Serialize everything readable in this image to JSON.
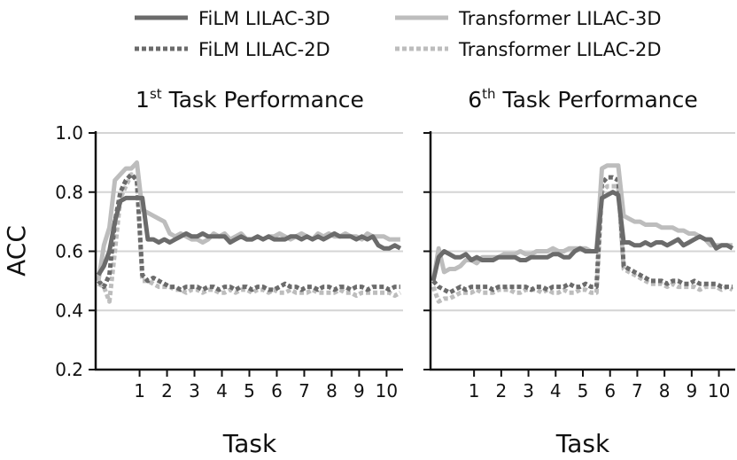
{
  "legend": {
    "items": [
      {
        "label": "FiLM LILAC-3D",
        "color": "#6b6b6b",
        "style": "solid"
      },
      {
        "label": "Transformer LILAC-3D",
        "color": "#bdbdbd",
        "style": "solid"
      },
      {
        "label": "FiLM LILAC-2D",
        "color": "#6b6b6b",
        "style": "dotted"
      },
      {
        "label": "Transformer LILAC-2D",
        "color": "#bdbdbd",
        "style": "dotted"
      }
    ],
    "placement": "top-center"
  },
  "chart_data": [
    {
      "type": "line",
      "title_main": "1",
      "title_sup": "st",
      "title_rest": " Task Performance",
      "xlabel": "Task",
      "ylabel": "ACC",
      "xlim": [
        -0.6,
        10.6
      ],
      "ylim": [
        0.2,
        1.0
      ],
      "yticks": [
        "0.2",
        "0.4",
        "0.6",
        "0.8",
        "1.0"
      ],
      "xticks": [
        "1",
        "2",
        "3",
        "4",
        "5",
        "6",
        "7",
        "8",
        "9",
        "10"
      ],
      "grid": "horizontal",
      "series": [
        {
          "name": "FiLM LILAC-3D",
          "x": [
            -0.5,
            -0.3,
            -0.1,
            0.1,
            0.3,
            0.5,
            0.7,
            0.9,
            1.1,
            1.3,
            1.5,
            1.7,
            1.9,
            2.1,
            2.3,
            2.5,
            2.7,
            2.9,
            3.1,
            3.3,
            3.5,
            3.7,
            3.9,
            4.1,
            4.3,
            4.5,
            4.7,
            4.9,
            5.1,
            5.3,
            5.5,
            5.7,
            5.9,
            6.1,
            6.3,
            6.5,
            6.7,
            6.9,
            7.1,
            7.3,
            7.5,
            7.7,
            7.9,
            8.1,
            8.3,
            8.5,
            8.7,
            8.9,
            9.1,
            9.3,
            9.5,
            9.7,
            9.9,
            10.1,
            10.3,
            10.5
          ],
          "y": [
            0.52,
            0.55,
            0.6,
            0.7,
            0.77,
            0.78,
            0.78,
            0.78,
            0.78,
            0.64,
            0.64,
            0.63,
            0.64,
            0.63,
            0.64,
            0.65,
            0.66,
            0.65,
            0.65,
            0.66,
            0.65,
            0.65,
            0.65,
            0.65,
            0.63,
            0.64,
            0.65,
            0.64,
            0.64,
            0.65,
            0.64,
            0.65,
            0.64,
            0.64,
            0.64,
            0.65,
            0.65,
            0.64,
            0.65,
            0.64,
            0.65,
            0.64,
            0.65,
            0.66,
            0.65,
            0.65,
            0.65,
            0.64,
            0.65,
            0.64,
            0.65,
            0.62,
            0.61,
            0.61,
            0.62,
            0.61
          ]
        },
        {
          "name": "Transformer LILAC-3D",
          "x": [
            -0.5,
            -0.3,
            -0.1,
            0.1,
            0.3,
            0.5,
            0.7,
            0.9,
            1.1,
            1.3,
            1.5,
            1.7,
            1.9,
            2.1,
            2.3,
            2.5,
            2.7,
            2.9,
            3.1,
            3.3,
            3.5,
            3.7,
            3.9,
            4.1,
            4.3,
            4.5,
            4.7,
            4.9,
            5.1,
            5.3,
            5.5,
            5.7,
            5.9,
            6.1,
            6.3,
            6.5,
            6.7,
            6.9,
            7.1,
            7.3,
            7.5,
            7.7,
            7.9,
            8.1,
            8.3,
            8.5,
            8.7,
            8.9,
            9.1,
            9.3,
            9.5,
            9.7,
            9.9,
            10.1,
            10.3,
            10.5
          ],
          "y": [
            0.5,
            0.62,
            0.68,
            0.84,
            0.86,
            0.88,
            0.88,
            0.9,
            0.74,
            0.73,
            0.72,
            0.71,
            0.7,
            0.66,
            0.65,
            0.66,
            0.65,
            0.64,
            0.64,
            0.63,
            0.64,
            0.66,
            0.65,
            0.66,
            0.64,
            0.65,
            0.66,
            0.64,
            0.64,
            0.65,
            0.64,
            0.65,
            0.65,
            0.66,
            0.65,
            0.64,
            0.65,
            0.66,
            0.65,
            0.64,
            0.66,
            0.65,
            0.66,
            0.65,
            0.65,
            0.66,
            0.65,
            0.65,
            0.64,
            0.66,
            0.65,
            0.65,
            0.65,
            0.64,
            0.64,
            0.64
          ]
        },
        {
          "name": "FiLM LILAC-2D",
          "x": [
            -0.5,
            -0.3,
            -0.1,
            0.1,
            0.3,
            0.5,
            0.7,
            0.9,
            1.1,
            1.3,
            1.5,
            1.7,
            1.9,
            2.1,
            2.3,
            2.5,
            2.7,
            2.9,
            3.1,
            3.3,
            3.5,
            3.7,
            3.9,
            4.1,
            4.3,
            4.5,
            4.7,
            4.9,
            5.1,
            5.3,
            5.5,
            5.7,
            5.9,
            6.1,
            6.3,
            6.5,
            6.7,
            6.9,
            7.1,
            7.3,
            7.5,
            7.7,
            7.9,
            8.1,
            8.3,
            8.5,
            8.7,
            8.9,
            9.1,
            9.3,
            9.5,
            9.7,
            9.9,
            10.1,
            10.3,
            10.5
          ],
          "y": [
            0.5,
            0.48,
            0.52,
            0.7,
            0.8,
            0.84,
            0.86,
            0.84,
            0.52,
            0.5,
            0.51,
            0.5,
            0.49,
            0.48,
            0.48,
            0.47,
            0.48,
            0.48,
            0.48,
            0.47,
            0.48,
            0.48,
            0.47,
            0.48,
            0.48,
            0.47,
            0.48,
            0.48,
            0.47,
            0.48,
            0.48,
            0.47,
            0.47,
            0.48,
            0.49,
            0.48,
            0.48,
            0.47,
            0.48,
            0.48,
            0.47,
            0.48,
            0.48,
            0.47,
            0.48,
            0.48,
            0.47,
            0.48,
            0.48,
            0.47,
            0.48,
            0.48,
            0.48,
            0.47,
            0.48,
            0.48
          ]
        },
        {
          "name": "Transformer LILAC-2D",
          "x": [
            -0.5,
            -0.3,
            -0.1,
            0.1,
            0.3,
            0.5,
            0.7,
            0.9,
            1.1,
            1.3,
            1.5,
            1.7,
            1.9,
            2.1,
            2.3,
            2.5,
            2.7,
            2.9,
            3.1,
            3.3,
            3.5,
            3.7,
            3.9,
            4.1,
            4.3,
            4.5,
            4.7,
            4.9,
            5.1,
            5.3,
            5.5,
            5.7,
            5.9,
            6.1,
            6.3,
            6.5,
            6.7,
            6.9,
            7.1,
            7.3,
            7.5,
            7.7,
            7.9,
            8.1,
            8.3,
            8.5,
            8.7,
            8.9,
            9.1,
            9.3,
            9.5,
            9.7,
            9.9,
            10.1,
            10.3,
            10.5
          ],
          "y": [
            0.49,
            0.48,
            0.43,
            0.6,
            0.78,
            0.82,
            0.86,
            0.85,
            0.5,
            0.5,
            0.49,
            0.48,
            0.48,
            0.48,
            0.47,
            0.47,
            0.46,
            0.47,
            0.47,
            0.46,
            0.47,
            0.47,
            0.46,
            0.46,
            0.47,
            0.46,
            0.47,
            0.47,
            0.46,
            0.47,
            0.47,
            0.46,
            0.47,
            0.46,
            0.46,
            0.47,
            0.46,
            0.46,
            0.46,
            0.47,
            0.46,
            0.46,
            0.46,
            0.46,
            0.47,
            0.46,
            0.46,
            0.45,
            0.46,
            0.46,
            0.46,
            0.46,
            0.46,
            0.46,
            0.45,
            0.46
          ]
        }
      ]
    },
    {
      "type": "line",
      "title_main": "6",
      "title_sup": "th",
      "title_rest": " Task Performance",
      "xlabel": "Task",
      "ylabel": "",
      "xlim": [
        -0.6,
        10.6
      ],
      "ylim": [
        0.2,
        1.0
      ],
      "yticks": [
        "0.2",
        "0.4",
        "0.6",
        "0.8",
        "1.0"
      ],
      "xticks": [
        "1",
        "2",
        "3",
        "4",
        "5",
        "6",
        "7",
        "8",
        "9",
        "10"
      ],
      "grid": "horizontal",
      "series": [
        {
          "name": "FiLM LILAC-3D",
          "x": [
            -0.5,
            -0.3,
            -0.1,
            0.1,
            0.3,
            0.5,
            0.7,
            0.9,
            1.1,
            1.3,
            1.5,
            1.7,
            1.9,
            2.1,
            2.3,
            2.5,
            2.7,
            2.9,
            3.1,
            3.3,
            3.5,
            3.7,
            3.9,
            4.1,
            4.3,
            4.5,
            4.7,
            4.9,
            5.1,
            5.3,
            5.5,
            5.7,
            5.9,
            6.1,
            6.3,
            6.5,
            6.7,
            6.9,
            7.1,
            7.3,
            7.5,
            7.7,
            7.9,
            8.1,
            8.3,
            8.5,
            8.7,
            8.9,
            9.1,
            9.3,
            9.5,
            9.7,
            9.9,
            10.1,
            10.3,
            10.5
          ],
          "y": [
            0.5,
            0.58,
            0.6,
            0.59,
            0.58,
            0.58,
            0.59,
            0.57,
            0.58,
            0.57,
            0.57,
            0.57,
            0.58,
            0.58,
            0.58,
            0.58,
            0.57,
            0.57,
            0.58,
            0.58,
            0.58,
            0.58,
            0.59,
            0.59,
            0.58,
            0.58,
            0.6,
            0.61,
            0.6,
            0.6,
            0.6,
            0.78,
            0.79,
            0.8,
            0.79,
            0.63,
            0.63,
            0.62,
            0.62,
            0.63,
            0.62,
            0.63,
            0.63,
            0.62,
            0.63,
            0.64,
            0.62,
            0.63,
            0.64,
            0.65,
            0.64,
            0.64,
            0.61,
            0.62,
            0.62,
            0.61
          ]
        },
        {
          "name": "Transformer LILAC-3D",
          "x": [
            -0.5,
            -0.3,
            -0.1,
            0.1,
            0.3,
            0.5,
            0.7,
            0.9,
            1.1,
            1.3,
            1.5,
            1.7,
            1.9,
            2.1,
            2.3,
            2.5,
            2.7,
            2.9,
            3.1,
            3.3,
            3.5,
            3.7,
            3.9,
            4.1,
            4.3,
            4.5,
            4.7,
            4.9,
            5.1,
            5.3,
            5.5,
            5.7,
            5.9,
            6.1,
            6.3,
            6.5,
            6.7,
            6.9,
            7.1,
            7.3,
            7.5,
            7.7,
            7.9,
            8.1,
            8.3,
            8.5,
            8.7,
            8.9,
            9.1,
            9.3,
            9.5,
            9.7,
            9.9,
            10.1,
            10.3,
            10.5
          ],
          "y": [
            0.5,
            0.61,
            0.53,
            0.54,
            0.54,
            0.55,
            0.57,
            0.57,
            0.56,
            0.58,
            0.58,
            0.58,
            0.58,
            0.59,
            0.59,
            0.59,
            0.6,
            0.59,
            0.59,
            0.6,
            0.6,
            0.6,
            0.61,
            0.6,
            0.6,
            0.61,
            0.61,
            0.61,
            0.61,
            0.6,
            0.6,
            0.88,
            0.89,
            0.89,
            0.89,
            0.72,
            0.71,
            0.7,
            0.7,
            0.69,
            0.69,
            0.69,
            0.68,
            0.68,
            0.68,
            0.67,
            0.67,
            0.66,
            0.66,
            0.65,
            0.64,
            0.62,
            0.62,
            0.62,
            0.62,
            0.62
          ]
        },
        {
          "name": "FiLM LILAC-2D",
          "x": [
            -0.5,
            -0.3,
            -0.1,
            0.1,
            0.3,
            0.5,
            0.7,
            0.9,
            1.1,
            1.3,
            1.5,
            1.7,
            1.9,
            2.1,
            2.3,
            2.5,
            2.7,
            2.9,
            3.1,
            3.3,
            3.5,
            3.7,
            3.9,
            4.1,
            4.3,
            4.5,
            4.7,
            4.9,
            5.1,
            5.3,
            5.5,
            5.7,
            5.9,
            6.1,
            6.3,
            6.5,
            6.7,
            6.9,
            7.1,
            7.3,
            7.5,
            7.7,
            7.9,
            8.1,
            8.3,
            8.5,
            8.7,
            8.9,
            9.1,
            9.3,
            9.5,
            9.7,
            9.9,
            10.1,
            10.3,
            10.5
          ],
          "y": [
            0.5,
            0.48,
            0.47,
            0.46,
            0.47,
            0.48,
            0.47,
            0.48,
            0.48,
            0.48,
            0.48,
            0.47,
            0.48,
            0.48,
            0.48,
            0.48,
            0.48,
            0.48,
            0.47,
            0.48,
            0.48,
            0.47,
            0.48,
            0.48,
            0.48,
            0.49,
            0.48,
            0.48,
            0.49,
            0.48,
            0.48,
            0.83,
            0.85,
            0.85,
            0.84,
            0.55,
            0.54,
            0.53,
            0.52,
            0.51,
            0.5,
            0.5,
            0.5,
            0.49,
            0.5,
            0.5,
            0.49,
            0.49,
            0.5,
            0.49,
            0.49,
            0.49,
            0.49,
            0.48,
            0.48,
            0.48
          ]
        },
        {
          "name": "Transformer LILAC-2D",
          "x": [
            -0.5,
            -0.3,
            -0.1,
            0.1,
            0.3,
            0.5,
            0.7,
            0.9,
            1.1,
            1.3,
            1.5,
            1.7,
            1.9,
            2.1,
            2.3,
            2.5,
            2.7,
            2.9,
            3.1,
            3.3,
            3.5,
            3.7,
            3.9,
            4.1,
            4.3,
            4.5,
            4.7,
            4.9,
            5.1,
            5.3,
            5.5,
            5.7,
            5.9,
            6.1,
            6.3,
            6.5,
            6.7,
            6.9,
            7.1,
            7.3,
            7.5,
            7.7,
            7.9,
            8.1,
            8.3,
            8.5,
            8.7,
            8.9,
            9.1,
            9.3,
            9.5,
            9.7,
            9.9,
            10.1,
            10.3,
            10.5
          ],
          "y": [
            0.48,
            0.43,
            0.44,
            0.44,
            0.45,
            0.46,
            0.46,
            0.46,
            0.47,
            0.46,
            0.46,
            0.46,
            0.47,
            0.47,
            0.47,
            0.46,
            0.46,
            0.47,
            0.47,
            0.47,
            0.46,
            0.47,
            0.46,
            0.46,
            0.47,
            0.46,
            0.46,
            0.47,
            0.47,
            0.46,
            0.46,
            0.8,
            0.82,
            0.82,
            0.82,
            0.54,
            0.53,
            0.52,
            0.51,
            0.5,
            0.49,
            0.49,
            0.49,
            0.48,
            0.49,
            0.48,
            0.48,
            0.48,
            0.48,
            0.47,
            0.48,
            0.48,
            0.48,
            0.47,
            0.48,
            0.47
          ]
        }
      ]
    }
  ]
}
